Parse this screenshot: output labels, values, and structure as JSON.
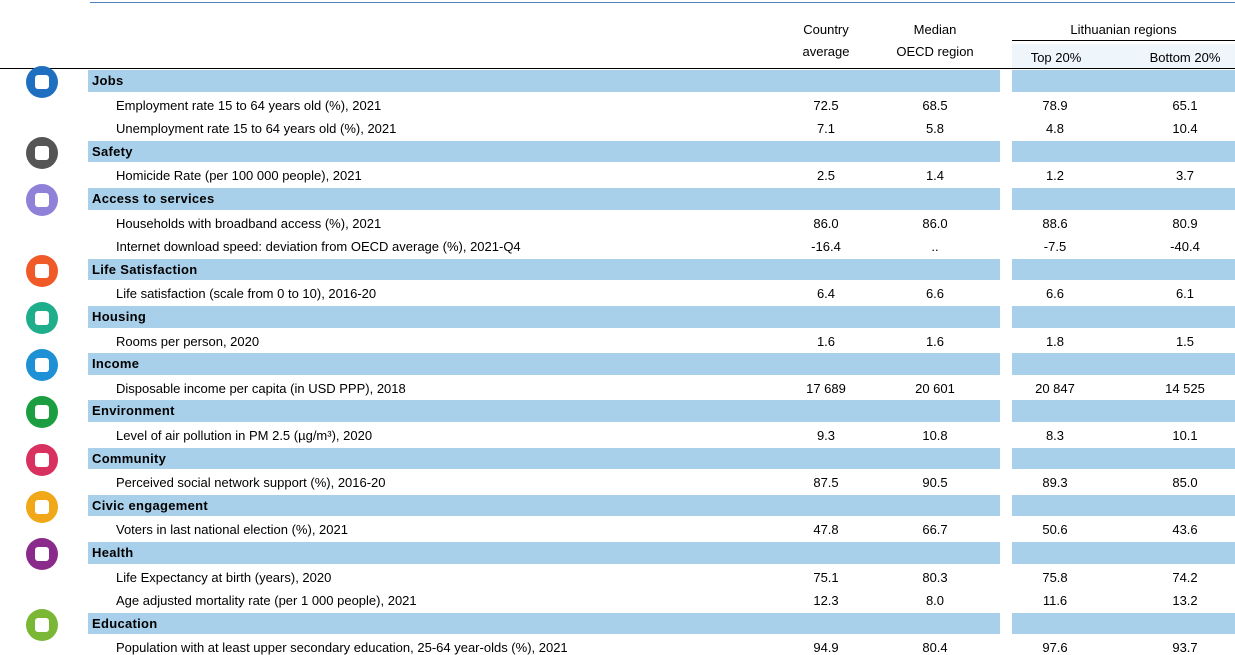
{
  "header": {
    "country_average": [
      "Country",
      "average"
    ],
    "median_oecd": [
      "Median",
      "OECD region"
    ],
    "regions": "Lithuanian regions",
    "top": "Top 20%",
    "bottom": "Bottom 20%"
  },
  "sections": [
    {
      "name": "Jobs",
      "icon_color": "#1f6fc0",
      "rows": [
        {
          "label": "Employment rate 15 to 64 years old (%), 2021",
          "values": [
            "72.5",
            "68.5",
            "78.9",
            "65.1"
          ]
        },
        {
          "label": "Unemployment rate 15 to 64 years old (%), 2021",
          "values": [
            "7.1",
            "5.8",
            "4.8",
            "10.4"
          ]
        }
      ]
    },
    {
      "name": "Safety",
      "icon_color": "#555555",
      "rows": [
        {
          "label": "Homicide Rate (per 100 000 people), 2021",
          "values": [
            "2.5",
            "1.4",
            "1.2",
            "3.7"
          ]
        }
      ]
    },
    {
      "name": "Access to services",
      "icon_color": "#8f80d8",
      "rows": [
        {
          "label": "Households with broadband access (%), 2021",
          "values": [
            "86.0",
            "86.0",
            "88.6",
            "80.9"
          ]
        },
        {
          "label": "Internet download speed: deviation from OECD average (%), 2021-Q4",
          "values": [
            "-16.4",
            "..",
            "-7.5",
            "-40.4"
          ]
        }
      ]
    },
    {
      "name": "Life Satisfaction",
      "icon_color": "#f05a28",
      "rows": [
        {
          "label": "Life satisfaction (scale from 0 to 10), 2016-20",
          "values": [
            "6.4",
            "6.6",
            "6.6",
            "6.1"
          ]
        }
      ]
    },
    {
      "name": "Housing",
      "icon_color": "#1fae8c",
      "rows": [
        {
          "label": "Rooms per person, 2020",
          "values": [
            "1.6",
            "1.6",
            "1.8",
            "1.5"
          ]
        }
      ]
    },
    {
      "name": "Income",
      "icon_color": "#1e90d6",
      "rows": [
        {
          "label": "Disposable income per capita (in USD PPP), 2018",
          "values": [
            "17 689",
            "20 601",
            "20 847",
            "14 525"
          ]
        }
      ]
    },
    {
      "name": "Environment",
      "icon_color": "#1a9e3f",
      "rows": [
        {
          "label": "Level of air pollution in PM 2.5 (µg/m³), 2020",
          "values": [
            "9.3",
            "10.8",
            "8.3",
            "10.1"
          ]
        }
      ]
    },
    {
      "name": "Community",
      "icon_color": "#d8305f",
      "rows": [
        {
          "label": "Perceived social network support (%), 2016-20",
          "values": [
            "87.5",
            "90.5",
            "89.3",
            "85.0"
          ]
        }
      ]
    },
    {
      "name": "Civic engagement",
      "icon_color": "#f0a818",
      "rows": [
        {
          "label": "Voters in last national election (%), 2021",
          "values": [
            "47.8",
            "66.7",
            "50.6",
            "43.6"
          ]
        }
      ]
    },
    {
      "name": "Health",
      "icon_color": "#8a2a8a",
      "rows": [
        {
          "label": "Life Expectancy at birth (years), 2020",
          "values": [
            "75.1",
            "80.3",
            "75.8",
            "74.2"
          ]
        },
        {
          "label": "Age adjusted mortality rate (per 1 000 people), 2021",
          "values": [
            "12.3",
            "8.0",
            "11.6",
            "13.2"
          ]
        }
      ]
    },
    {
      "name": "Education",
      "icon_color": "#7ab734",
      "rows": [
        {
          "label": "Population with at least upper secondary education, 25-64 year-olds (%), 2021",
          "values": [
            "94.9",
            "80.4",
            "97.6",
            "93.7"
          ]
        }
      ]
    }
  ]
}
